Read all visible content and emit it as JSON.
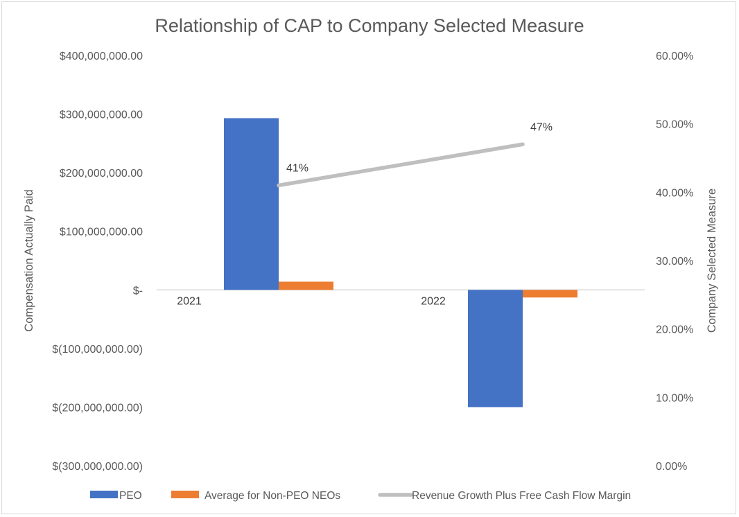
{
  "chart_data": {
    "type": "bar",
    "title": "Relationship of CAP to Company Selected Measure",
    "categories": [
      "2021",
      "2022"
    ],
    "series": [
      {
        "name": "PEO",
        "kind": "bar",
        "axis": "left",
        "values": [
          293000000,
          -200000000
        ],
        "color": "#4472C4"
      },
      {
        "name": "Average for Non-PEO NEOs",
        "kind": "bar",
        "axis": "left",
        "values": [
          14000000,
          -13000000
        ],
        "color": "#ED7D31"
      },
      {
        "name": "Revenue Growth Plus Free Cash Flow Margin",
        "kind": "line",
        "axis": "right",
        "values": [
          0.41,
          0.47
        ],
        "labels": [
          "41%",
          "47%"
        ],
        "color": "#BFBFBF"
      }
    ],
    "ylabel": "Compensation Actually Paid",
    "y2label": "Company Selected Measure",
    "ylim": [
      -300000000,
      400000000
    ],
    "y2lim": [
      0,
      0.6
    ],
    "y_ticks": [
      {
        "value": 400000000,
        "label": "$400,000,000.00"
      },
      {
        "value": 300000000,
        "label": "$300,000,000.00"
      },
      {
        "value": 200000000,
        "label": "$200,000,000.00"
      },
      {
        "value": 100000000,
        "label": "$100,000,000.00"
      },
      {
        "value": 0,
        "label": "$-"
      },
      {
        "value": -100000000,
        "label": "$(100,000,000.00)"
      },
      {
        "value": -200000000,
        "label": "$(200,000,000.00)"
      },
      {
        "value": -300000000,
        "label": "$(300,000,000.00)"
      }
    ],
    "y2_ticks": [
      {
        "value": 0.6,
        "label": "60.00%"
      },
      {
        "value": 0.5,
        "label": "50.00%"
      },
      {
        "value": 0.4,
        "label": "40.00%"
      },
      {
        "value": 0.3,
        "label": "30.00%"
      },
      {
        "value": 0.2,
        "label": "20.00%"
      },
      {
        "value": 0.1,
        "label": "10.00%"
      },
      {
        "value": 0.0,
        "label": "0.00%"
      }
    ],
    "grid": false,
    "legend_position": "bottom"
  }
}
